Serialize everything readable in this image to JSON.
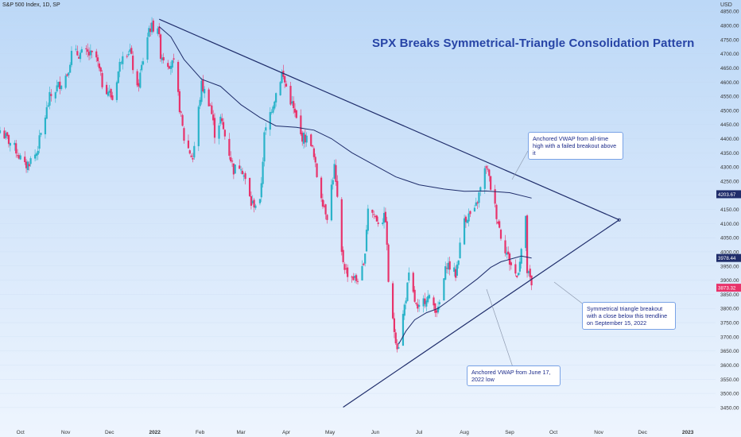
{
  "header": {
    "ticker": "S&P 500 Index, 1D, SP",
    "currency": "USD"
  },
  "title": "SPX Breaks Symmetrical-Triangle Consolidation Pattern",
  "annotations": {
    "ath_vwap": "Anchored VWAP from all-time high with a failed breakout above it",
    "breakout": "Symmetrical triangle breakout with a close below this trendline on September 15, 2022",
    "june_vwap": "Anchored VWAP from June 17, 2022 low"
  },
  "colors": {
    "up": "#2ab3c9",
    "down": "#e8336b",
    "line": "#1f2d6b",
    "grid": "#c2d6ee"
  },
  "chart_data": {
    "type": "line",
    "y_axis": {
      "ticks": [
        3450,
        3500,
        3550,
        3600,
        3650,
        3700,
        3750,
        3800,
        3850,
        3900,
        3950,
        4000,
        4050,
        4100,
        4150,
        4200,
        4250,
        4300,
        4350,
        4400,
        4450,
        4500,
        4550,
        4600,
        4650,
        4700,
        4750,
        4800,
        4850
      ],
      "range": [
        3430,
        4890
      ],
      "scale": "linear"
    },
    "x_axis": {
      "labels": [
        "Oct",
        "Nov",
        "Dec",
        "2022",
        "Feb",
        "Mar",
        "Apr",
        "May",
        "Jun",
        "Jul",
        "Aug",
        "Sep",
        "Oct",
        "Nov",
        "Dec",
        "2023"
      ],
      "range": [
        "2021-09-17",
        "2023-01-20"
      ]
    },
    "price_labels": [
      {
        "value": "4203.67",
        "y": 4203.67,
        "color": "#1f2d6b"
      },
      {
        "value": "3978.44",
        "y": 3978.44,
        "color": "#1f2d6b"
      },
      {
        "value": "3873.32",
        "y": 3873.32,
        "color": "#e8336b"
      }
    ],
    "series": [
      {
        "role": "price",
        "points": [
          [
            "2021-09-17",
            4430
          ],
          [
            "2021-09-28",
            4360
          ],
          [
            "2021-10-04",
            4300
          ],
          [
            "2021-10-12",
            4350
          ],
          [
            "2021-10-21",
            4545
          ],
          [
            "2021-11-02",
            4630
          ],
          [
            "2021-11-05",
            4700
          ],
          [
            "2021-11-16",
            4700
          ],
          [
            "2021-11-22",
            4685
          ],
          [
            "2021-11-26",
            4595
          ],
          [
            "2021-11-30",
            4570
          ],
          [
            "2021-12-03",
            4540
          ],
          [
            "2021-12-10",
            4710
          ],
          [
            "2021-12-15",
            4710
          ],
          [
            "2021-12-20",
            4570
          ],
          [
            "2021-12-28",
            4790
          ],
          [
            "2022-01-03",
            4800
          ],
          [
            "2022-01-05",
            4700
          ],
          [
            "2022-01-10",
            4670
          ],
          [
            "2022-01-14",
            4660
          ],
          [
            "2022-01-21",
            4400
          ],
          [
            "2022-01-27",
            4330
          ],
          [
            "2022-02-02",
            4590
          ],
          [
            "2022-02-08",
            4520
          ],
          [
            "2022-02-11",
            4420
          ],
          [
            "2022-02-15",
            4470
          ],
          [
            "2022-02-24",
            4290
          ],
          [
            "2022-03-01",
            4310
          ],
          [
            "2022-03-08",
            4170
          ],
          [
            "2022-03-14",
            4170
          ],
          [
            "2022-03-17",
            4410
          ],
          [
            "2022-03-22",
            4510
          ],
          [
            "2022-03-29",
            4630
          ],
          [
            "2022-04-05",
            4520
          ],
          [
            "2022-04-11",
            4410
          ],
          [
            "2022-04-18",
            4390
          ],
          [
            "2022-04-22",
            4270
          ],
          [
            "2022-04-26",
            4180
          ],
          [
            "2022-04-29",
            4130
          ],
          [
            "2022-05-04",
            4300
          ],
          [
            "2022-05-09",
            3990
          ],
          [
            "2022-05-12",
            3930
          ],
          [
            "2022-05-19",
            3900
          ],
          [
            "2022-05-24",
            3940
          ],
          [
            "2022-05-27",
            4160
          ],
          [
            "2022-06-03",
            4110
          ],
          [
            "2022-06-08",
            4120
          ],
          [
            "2022-06-10",
            3900
          ],
          [
            "2022-06-13",
            3750
          ],
          [
            "2022-06-16",
            3670
          ],
          [
            "2022-06-17",
            3675
          ],
          [
            "2022-06-24",
            3910
          ],
          [
            "2022-06-30",
            3785
          ],
          [
            "2022-07-06",
            3845
          ],
          [
            "2022-07-14",
            3790
          ],
          [
            "2022-07-20",
            3960
          ],
          [
            "2022-07-26",
            3920
          ],
          [
            "2022-08-01",
            4120
          ],
          [
            "2022-08-08",
            4140
          ],
          [
            "2022-08-16",
            4305
          ],
          [
            "2022-08-19",
            4230
          ],
          [
            "2022-08-26",
            4060
          ],
          [
            "2022-09-01",
            3965
          ],
          [
            "2022-09-06",
            3910
          ],
          [
            "2022-09-12",
            4110
          ],
          [
            "2022-09-13",
            3930
          ],
          [
            "2022-09-15",
            3900
          ],
          [
            "2022-09-16",
            3873
          ]
        ]
      },
      {
        "role": "vwap_ath",
        "points": [
          [
            "2022-01-04",
            4796
          ],
          [
            "2022-01-12",
            4760
          ],
          [
            "2022-01-21",
            4680
          ],
          [
            "2022-02-02",
            4610
          ],
          [
            "2022-02-15",
            4585
          ],
          [
            "2022-03-01",
            4520
          ],
          [
            "2022-03-14",
            4475
          ],
          [
            "2022-03-25",
            4445
          ],
          [
            "2022-04-08",
            4440
          ],
          [
            "2022-04-20",
            4430
          ],
          [
            "2022-05-02",
            4400
          ],
          [
            "2022-05-16",
            4350
          ],
          [
            "2022-06-01",
            4305
          ],
          [
            "2022-06-15",
            4265
          ],
          [
            "2022-07-01",
            4237
          ],
          [
            "2022-07-18",
            4222
          ],
          [
            "2022-08-01",
            4214
          ],
          [
            "2022-08-16",
            4215
          ],
          [
            "2022-09-01",
            4209
          ],
          [
            "2022-09-16",
            4190
          ]
        ]
      },
      {
        "role": "vwap_june",
        "points": [
          [
            "2022-06-17",
            3674
          ],
          [
            "2022-06-22",
            3720
          ],
          [
            "2022-06-28",
            3760
          ],
          [
            "2022-07-06",
            3785
          ],
          [
            "2022-07-14",
            3800
          ],
          [
            "2022-07-22",
            3830
          ],
          [
            "2022-08-01",
            3870
          ],
          [
            "2022-08-10",
            3905
          ],
          [
            "2022-08-19",
            3945
          ],
          [
            "2022-08-26",
            3965
          ],
          [
            "2022-09-02",
            3975
          ],
          [
            "2022-09-09",
            3985
          ],
          [
            "2022-09-16",
            3978
          ]
        ]
      },
      {
        "role": "upper_trendline",
        "points": [
          [
            "2022-01-04",
            4822
          ],
          [
            "2022-11-15",
            4113
          ]
        ]
      },
      {
        "role": "lower_trendline",
        "points": [
          [
            "2022-05-10",
            3451
          ],
          [
            "2022-11-15",
            4113
          ]
        ]
      }
    ]
  }
}
